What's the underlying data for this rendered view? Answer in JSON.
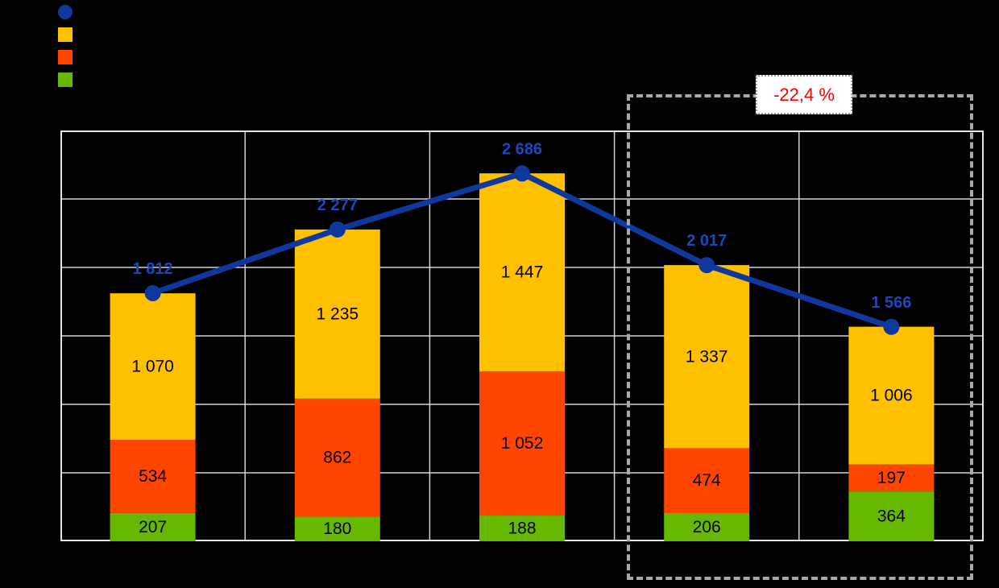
{
  "page": {
    "background": "#000000"
  },
  "legend": {
    "items": [
      {
        "icon": "line-series-marker-icon",
        "shape": "circle",
        "color": "#0E389E"
      },
      {
        "icon": "amber-series-swatch-icon",
        "shape": "square",
        "color": "#FFC000"
      },
      {
        "icon": "red-series-swatch-icon",
        "shape": "square",
        "color": "#FF4500"
      },
      {
        "icon": "green-series-swatch-icon",
        "shape": "square",
        "color": "#66B800"
      }
    ]
  },
  "annotation": {
    "text": "-22,4 %",
    "text_color": "#FF0000",
    "box_background": "#FFFFFF",
    "box_border_color": "#9E9E9E",
    "dashed_box_color": "#A9A9A9"
  },
  "chart_data": {
    "type": "bar",
    "subtype": "stacked-columns-with-total-line",
    "categories": [
      "",
      "",
      "",
      "",
      ""
    ],
    "series": [
      {
        "name": "green-segment",
        "color": "#66B800",
        "values": [
          207,
          180,
          188,
          206,
          364
        ],
        "labels": [
          "207",
          "180",
          "188",
          "206",
          "364"
        ]
      },
      {
        "name": "red-segment",
        "color": "#FF4500",
        "values": [
          534,
          862,
          1052,
          474,
          197
        ],
        "labels": [
          "534",
          "862",
          "1 052",
          "474",
          "197"
        ]
      },
      {
        "name": "amber-segment",
        "color": "#FFC000",
        "values": [
          1070,
          1235,
          1447,
          1337,
          1006
        ],
        "labels": [
          "1 070",
          "1 235",
          "1 447",
          "1 337",
          "1 006"
        ]
      }
    ],
    "line_series": {
      "name": "total-line",
      "color": "#0E389E",
      "label_color": "#1E46BE",
      "values": [
        1812,
        2277,
        2686,
        2017,
        1566
      ],
      "labels": [
        "1 812",
        "2 277",
        "2 686",
        "2 017",
        "1 566"
      ]
    },
    "ylim": [
      0,
      3000
    ],
    "grid": {
      "on": true,
      "step": 500,
      "color": "#D4D4D4",
      "border_color": "#E6E6E6"
    },
    "highlight": {
      "label": "-22,4 %",
      "categories": [
        3,
        4
      ]
    },
    "title": "",
    "xlabel": "",
    "ylabel": ""
  }
}
